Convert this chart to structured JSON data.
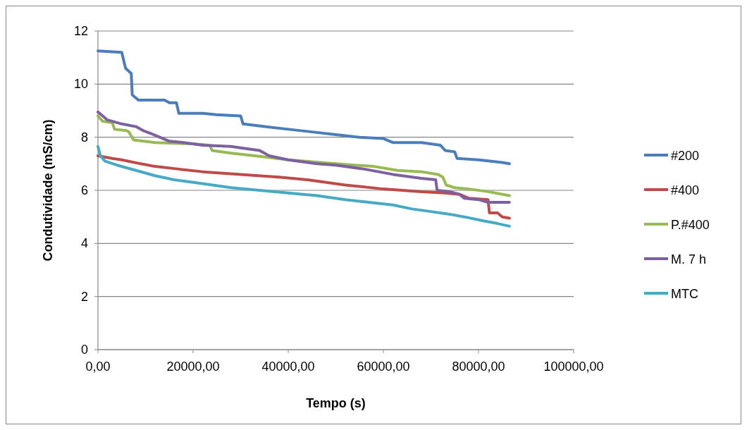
{
  "chart_data": {
    "type": "line",
    "xlabel": "Tempo (s)",
    "ylabel": "Condutividade (mS/cm)",
    "xlim": [
      0,
      100000
    ],
    "xticks": [
      {
        "value": 0,
        "label": "0,00"
      },
      {
        "value": 20000,
        "label": "20000,00"
      },
      {
        "value": 40000,
        "label": "40000,00"
      },
      {
        "value": 60000,
        "label": "60000,00"
      },
      {
        "value": 80000,
        "label": "80000,00"
      },
      {
        "value": 100000,
        "label": "100000,00"
      }
    ],
    "ylim": [
      0,
      12
    ],
    "yticks": [
      0,
      2,
      4,
      6,
      8,
      10,
      12
    ],
    "grid": "y",
    "legend": "right",
    "marker": "none",
    "line_style": "solid",
    "series": [
      {
        "name": "#200",
        "color": "#4a7ebb",
        "x": [
          0,
          5000,
          5800,
          7000,
          7200,
          8500,
          14000,
          15000,
          16500,
          17000,
          22000,
          25000,
          30000,
          30500,
          35000,
          40000,
          45000,
          50000,
          55000,
          60000,
          62000,
          68000,
          72000,
          73000,
          75000,
          75500,
          80000,
          85000,
          86500
        ],
        "values": [
          11.25,
          11.2,
          10.6,
          10.4,
          9.6,
          9.4,
          9.4,
          9.3,
          9.3,
          8.9,
          8.9,
          8.85,
          8.8,
          8.5,
          8.4,
          8.3,
          8.2,
          8.1,
          8.0,
          7.95,
          7.8,
          7.8,
          7.7,
          7.5,
          7.45,
          7.2,
          7.15,
          7.05,
          7.0
        ]
      },
      {
        "name": "#400",
        "color": "#be4b48",
        "x": [
          0,
          3000,
          5000,
          9000,
          12000,
          17000,
          22000,
          30000,
          38000,
          44000,
          52000,
          60000,
          68000,
          73000,
          76000,
          78000,
          82000,
          82300,
          84000,
          85000,
          86500
        ],
        "values": [
          7.3,
          7.2,
          7.15,
          7.0,
          6.9,
          6.8,
          6.7,
          6.6,
          6.5,
          6.4,
          6.2,
          6.05,
          5.95,
          5.9,
          5.85,
          5.7,
          5.65,
          5.15,
          5.15,
          5.0,
          4.95
        ]
      },
      {
        "name": "P.#400",
        "color": "#98b954",
        "x": [
          0,
          1000,
          3000,
          3500,
          6000,
          6500,
          7500,
          12000,
          20000,
          23500,
          24000,
          28000,
          33000,
          40000,
          50000,
          58000,
          63000,
          68000,
          71500,
          72500,
          73200,
          75000,
          78000,
          82000,
          86500
        ],
        "values": [
          8.8,
          8.6,
          8.55,
          8.3,
          8.25,
          8.2,
          7.9,
          7.8,
          7.75,
          7.7,
          7.5,
          7.4,
          7.3,
          7.15,
          7.0,
          6.9,
          6.75,
          6.7,
          6.6,
          6.5,
          6.2,
          6.1,
          6.05,
          5.95,
          5.8
        ]
      },
      {
        "name": "M. 7 h",
        "color": "#7d60a0",
        "x": [
          0,
          1000,
          2000,
          5000,
          8000,
          9500,
          11000,
          13000,
          15000,
          18000,
          22000,
          28000,
          30000,
          34000,
          36000,
          40000,
          46000,
          50000,
          56000,
          62000,
          68000,
          71000,
          71300,
          74000,
          76000,
          77000,
          80000,
          82000,
          86500
        ],
        "values": [
          8.95,
          8.8,
          8.65,
          8.5,
          8.4,
          8.25,
          8.15,
          8.0,
          7.85,
          7.8,
          7.7,
          7.65,
          7.6,
          7.5,
          7.3,
          7.15,
          7.0,
          6.95,
          6.8,
          6.6,
          6.45,
          6.4,
          6.0,
          5.95,
          5.85,
          5.7,
          5.65,
          5.55,
          5.55
        ]
      },
      {
        "name": "MTC",
        "color": "#46aac5",
        "x": [
          0,
          500,
          1500,
          4000,
          8000,
          12000,
          16000,
          22000,
          28000,
          34000,
          40000,
          46000,
          52000,
          57000,
          62000,
          66000,
          70000,
          74000,
          77000,
          81000,
          84000,
          86500
        ],
        "values": [
          7.65,
          7.3,
          7.1,
          6.95,
          6.75,
          6.55,
          6.4,
          6.25,
          6.1,
          6.0,
          5.9,
          5.8,
          5.65,
          5.55,
          5.45,
          5.3,
          5.2,
          5.1,
          5.0,
          4.85,
          4.75,
          4.65
        ]
      }
    ]
  }
}
